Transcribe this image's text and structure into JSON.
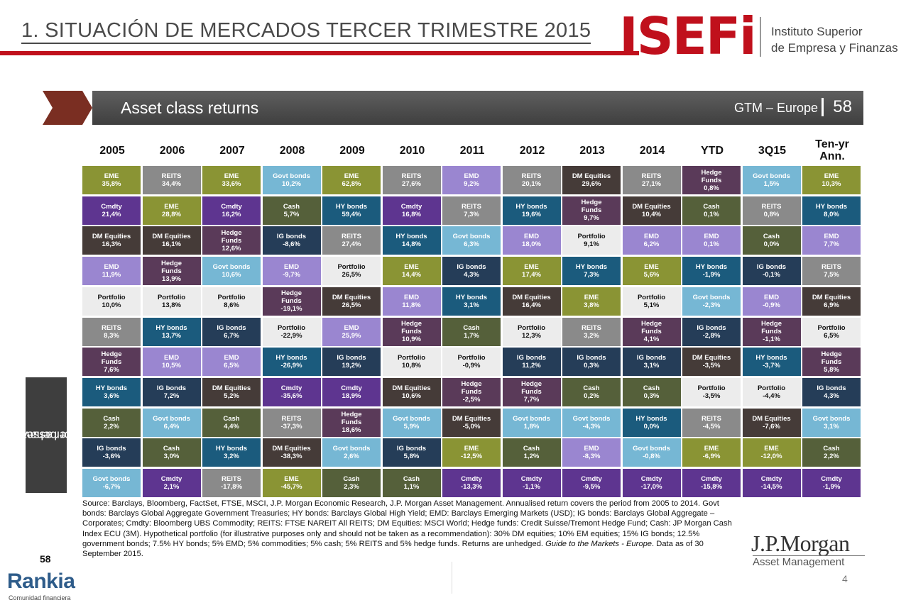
{
  "header": {
    "title": "1. SITUACIÓN DE MERCADOS TERCER TRIMESTRE 2015",
    "logo_text": "ISEFi",
    "logo_sub_line1": "Instituto Superior",
    "logo_sub_line2": "de Empresa y Finanzas"
  },
  "banner": {
    "title": "Asset class returns",
    "right_label": "GTM – Europe",
    "page_number": "58"
  },
  "side_tab": {
    "line1": "Other assets and",
    "line2": "investor behaviour"
  },
  "colors": {
    "EME": "#8a9434",
    "REITS": "#8a8a8a",
    "Cmdty": "#5e3590",
    "Govt bonds": "#76b7d4",
    "DM Equities": "#453b38",
    "Cash": "#55603a",
    "HY bonds": "#1b5b7d",
    "EMD": "#9a86d0",
    "IG bonds": "#253d58",
    "Hedge Funds": "#5a3a59",
    "Portfolio": "#ececec"
  },
  "chart_data": {
    "type": "table",
    "title": "Asset class returns",
    "columns": [
      "2005",
      "2006",
      "2007",
      "2008",
      "2009",
      "2010",
      "2011",
      "2012",
      "2013",
      "2014",
      "YTD",
      "3Q15",
      "Ten-yr Ann."
    ],
    "data": [
      [
        {
          "name": "EME",
          "value": "35,8%"
        },
        {
          "name": "Cmdty",
          "value": "21,4%"
        },
        {
          "name": "DM Equities",
          "value": "16,3%"
        },
        {
          "name": "EMD",
          "value": "11,9%"
        },
        {
          "name": "Portfolio",
          "value": "10,0%"
        },
        {
          "name": "REITS",
          "value": "8,3%"
        },
        {
          "name": "Hedge Funds",
          "value": "7,6%"
        },
        {
          "name": "HY bonds",
          "value": "3,6%"
        },
        {
          "name": "Cash",
          "value": "2,2%"
        },
        {
          "name": "IG bonds",
          "value": "-3,6%"
        },
        {
          "name": "Govt bonds",
          "value": "-6,7%"
        }
      ],
      [
        {
          "name": "REITS",
          "value": "34,4%"
        },
        {
          "name": "EME",
          "value": "28,8%"
        },
        {
          "name": "DM Equities",
          "value": "16,1%"
        },
        {
          "name": "Hedge Funds",
          "value": "13,9%"
        },
        {
          "name": "Portfolio",
          "value": "13,8%"
        },
        {
          "name": "HY bonds",
          "value": "13,7%"
        },
        {
          "name": "EMD",
          "value": "10,5%"
        },
        {
          "name": "IG bonds",
          "value": "7,2%"
        },
        {
          "name": "Govt bonds",
          "value": "6,4%"
        },
        {
          "name": "Cash",
          "value": "3,0%"
        },
        {
          "name": "Cmdty",
          "value": "2,1%"
        }
      ],
      [
        {
          "name": "EME",
          "value": "33,6%"
        },
        {
          "name": "Cmdty",
          "value": "16,2%"
        },
        {
          "name": "Hedge Funds",
          "value": "12,6%"
        },
        {
          "name": "Govt bonds",
          "value": "10,6%"
        },
        {
          "name": "Portfolio",
          "value": "8,6%"
        },
        {
          "name": "IG bonds",
          "value": "6,7%"
        },
        {
          "name": "EMD",
          "value": "6,5%"
        },
        {
          "name": "DM Equities",
          "value": "5,2%"
        },
        {
          "name": "Cash",
          "value": "4,4%"
        },
        {
          "name": "HY bonds",
          "value": "3,2%"
        },
        {
          "name": "REITS",
          "value": "-17,8%"
        }
      ],
      [
        {
          "name": "Govt bonds",
          "value": "10,2%"
        },
        {
          "name": "Cash",
          "value": "5,7%"
        },
        {
          "name": "IG bonds",
          "value": "-8,6%"
        },
        {
          "name": "EMD",
          "value": "-9,7%"
        },
        {
          "name": "Hedge Funds",
          "value": "-19,1%"
        },
        {
          "name": "Portfolio",
          "value": "-22,9%"
        },
        {
          "name": "HY bonds",
          "value": "-26,9%"
        },
        {
          "name": "Cmdty",
          "value": "-35,6%"
        },
        {
          "name": "REITS",
          "value": "-37,3%"
        },
        {
          "name": "DM Equities",
          "value": "-38,3%"
        },
        {
          "name": "EME",
          "value": "-45,7%"
        }
      ],
      [
        {
          "name": "EME",
          "value": "62,8%"
        },
        {
          "name": "HY bonds",
          "value": "59,4%"
        },
        {
          "name": "REITS",
          "value": "27,4%"
        },
        {
          "name": "Portfolio",
          "value": "26,5%"
        },
        {
          "name": "DM Equities",
          "value": "26,5%"
        },
        {
          "name": "EMD",
          "value": "25,9%"
        },
        {
          "name": "IG bonds",
          "value": "19,2%"
        },
        {
          "name": "Cmdty",
          "value": "18,9%"
        },
        {
          "name": "Hedge Funds",
          "value": "18,6%"
        },
        {
          "name": "Govt bonds",
          "value": "2,6%"
        },
        {
          "name": "Cash",
          "value": "2,3%"
        }
      ],
      [
        {
          "name": "REITS",
          "value": "27,6%"
        },
        {
          "name": "Cmdty",
          "value": "16,8%"
        },
        {
          "name": "HY bonds",
          "value": "14,8%"
        },
        {
          "name": "EME",
          "value": "14,4%"
        },
        {
          "name": "EMD",
          "value": "11,8%"
        },
        {
          "name": "Hedge Funds",
          "value": "10,9%"
        },
        {
          "name": "Portfolio",
          "value": "10,8%"
        },
        {
          "name": "DM Equities",
          "value": "10,6%"
        },
        {
          "name": "Govt bonds",
          "value": "5,9%"
        },
        {
          "name": "IG bonds",
          "value": "5,8%"
        },
        {
          "name": "Cash",
          "value": "1,1%"
        }
      ],
      [
        {
          "name": "EMD",
          "value": "9,2%"
        },
        {
          "name": "REITS",
          "value": "7,3%"
        },
        {
          "name": "Govt bonds",
          "value": "6,3%"
        },
        {
          "name": "IG bonds",
          "value": "4,3%"
        },
        {
          "name": "HY bonds",
          "value": "3,1%"
        },
        {
          "name": "Cash",
          "value": "1,7%"
        },
        {
          "name": "Portfolio",
          "value": "-0,9%"
        },
        {
          "name": "Hedge Funds",
          "value": "-2,5%"
        },
        {
          "name": "DM Equities",
          "value": "-5,0%"
        },
        {
          "name": "EME",
          "value": "-12,5%"
        },
        {
          "name": "Cmdty",
          "value": "-13,3%"
        }
      ],
      [
        {
          "name": "REITS",
          "value": "20,1%"
        },
        {
          "name": "HY bonds",
          "value": "19,6%"
        },
        {
          "name": "EMD",
          "value": "18,0%"
        },
        {
          "name": "EME",
          "value": "17,4%"
        },
        {
          "name": "DM Equities",
          "value": "16,4%"
        },
        {
          "name": "Portfolio",
          "value": "12,3%"
        },
        {
          "name": "IG bonds",
          "value": "11,2%"
        },
        {
          "name": "Hedge Funds",
          "value": "7,7%"
        },
        {
          "name": "Govt bonds",
          "value": "1,8%"
        },
        {
          "name": "Cash",
          "value": "1,2%"
        },
        {
          "name": "Cmdty",
          "value": "-1,1%"
        }
      ],
      [
        {
          "name": "DM Equities",
          "value": "29,6%"
        },
        {
          "name": "Hedge Funds",
          "value": "9,7%"
        },
        {
          "name": "Portfolio",
          "value": "9,1%"
        },
        {
          "name": "HY bonds",
          "value": "7,3%"
        },
        {
          "name": "EME",
          "value": "3,8%"
        },
        {
          "name": "REITS",
          "value": "3,2%"
        },
        {
          "name": "IG bonds",
          "value": "0,3%"
        },
        {
          "name": "Cash",
          "value": "0,2%"
        },
        {
          "name": "Govt bonds",
          "value": "-4,3%"
        },
        {
          "name": "EMD",
          "value": "-8,3%"
        },
        {
          "name": "Cmdty",
          "value": "-9,5%"
        }
      ],
      [
        {
          "name": "REITS",
          "value": "27,1%"
        },
        {
          "name": "DM Equities",
          "value": "10,4%"
        },
        {
          "name": "EMD",
          "value": "6,2%"
        },
        {
          "name": "EME",
          "value": "5,6%"
        },
        {
          "name": "Portfolio",
          "value": "5,1%"
        },
        {
          "name": "Hedge Funds",
          "value": "4,1%"
        },
        {
          "name": "IG bonds",
          "value": "3,1%"
        },
        {
          "name": "Cash",
          "value": "0,3%"
        },
        {
          "name": "HY bonds",
          "value": "0,0%"
        },
        {
          "name": "Govt bonds",
          "value": "-0,8%"
        },
        {
          "name": "Cmdty",
          "value": "-17,0%"
        }
      ],
      [
        {
          "name": "Hedge Funds",
          "value": "0,8%"
        },
        {
          "name": "Cash",
          "value": "0,1%"
        },
        {
          "name": "EMD",
          "value": "0,1%"
        },
        {
          "name": "HY bonds",
          "value": "-1,9%"
        },
        {
          "name": "Govt bonds",
          "value": "-2,3%"
        },
        {
          "name": "IG bonds",
          "value": "-2,8%"
        },
        {
          "name": "DM Equities",
          "value": "-3,5%"
        },
        {
          "name": "Portfolio",
          "value": "-3,5%"
        },
        {
          "name": "REITS",
          "value": "-4,5%"
        },
        {
          "name": "EME",
          "value": "-6,9%"
        },
        {
          "name": "Cmdty",
          "value": "-15,8%"
        }
      ],
      [
        {
          "name": "Govt bonds",
          "value": "1,5%"
        },
        {
          "name": "REITS",
          "value": "0,8%"
        },
        {
          "name": "Cash",
          "value": "0,0%"
        },
        {
          "name": "IG bonds",
          "value": "-0,1%"
        },
        {
          "name": "EMD",
          "value": "-0,9%"
        },
        {
          "name": "Hedge Funds",
          "value": "-1,1%"
        },
        {
          "name": "HY bonds",
          "value": "-3,7%"
        },
        {
          "name": "Portfolio",
          "value": "-4,4%"
        },
        {
          "name": "DM Equities",
          "value": "-7,6%"
        },
        {
          "name": "EME",
          "value": "-12,0%"
        },
        {
          "name": "Cmdty",
          "value": "-14,5%"
        }
      ],
      [
        {
          "name": "EME",
          "value": "10,3%"
        },
        {
          "name": "HY bonds",
          "value": "8,0%"
        },
        {
          "name": "EMD",
          "value": "7,7%"
        },
        {
          "name": "REITS",
          "value": "7,5%"
        },
        {
          "name": "DM Equities",
          "value": "6,9%"
        },
        {
          "name": "Portfolio",
          "value": "6,5%"
        },
        {
          "name": "Hedge Funds",
          "value": "5,8%"
        },
        {
          "name": "IG bonds",
          "value": "4,3%"
        },
        {
          "name": "Govt bonds",
          "value": "3,1%"
        },
        {
          "name": "Cash",
          "value": "2,2%"
        },
        {
          "name": "Cmdty",
          "value": "-1,9%"
        }
      ]
    ]
  },
  "source_note": {
    "p1": "Source: Barclays, Bloomberg, FactSet, FTSE, MSCI, J.P. Morgan Economic Research, J.P. Morgan Asset Management. Annualised return covers the period from 2005 to 2014. Govt bonds: Barclays Global Aggregate Government Treasuries; HY bonds: Barclays Global High Yield; EMD: Barclays Emerging Markets (USD); IG bonds: Barclays Global Aggregate – Corporates; Cmdty: Bloomberg UBS Commodity; REITS: FTSE NAREIT All REITS; DM Equities: MSCI World; Hedge funds: Credit Suisse/Tremont Hedge Fund; Cash: JP Morgan Cash Index ECU (3M). Hypothetical portfolio (for illustrative purposes only and should not be taken as a recommendation): 30% DM equities; 10% EM equities; 15% IG bonds; 12.5% government bonds; 7.5% HY bonds; 5% EMD; 5% commodities; 5% cash; 5% REITS and 5% hedge funds. Returns are unhedged. ",
    "guide": "Guide to the Markets - Europe",
    "p2": ". Data as of 30 September 2015."
  },
  "footer": {
    "page_58": "58",
    "jpm_logo": "J.P.Morgan",
    "jpm_sub": "Asset Management",
    "slide_num": "4",
    "rankia": "Rankia",
    "rankia_sub": "Comunidad financiera"
  }
}
